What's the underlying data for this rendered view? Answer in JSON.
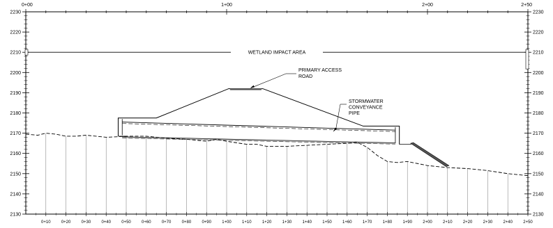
{
  "chart_data": {
    "type": "line",
    "xlim": [
      0,
      250
    ],
    "ylim": [
      2130,
      2230
    ],
    "y_ticks": [
      2130,
      2140,
      2150,
      2160,
      2170,
      2180,
      2190,
      2200,
      2210,
      2220,
      2230
    ],
    "y_tick_labels": [
      "2130",
      "2140",
      "2150",
      "2160",
      "2170",
      "2180",
      "2190",
      "2200",
      "2210",
      "2220",
      "2230"
    ],
    "top_stations": [
      0,
      100,
      200,
      250
    ],
    "top_station_labels": [
      "0+00",
      "1+00",
      "2+00",
      "2+50"
    ],
    "bottom_stations": [
      10,
      20,
      30,
      40,
      50,
      60,
      70,
      80,
      90,
      100,
      110,
      120,
      130,
      140,
      150,
      160,
      170,
      180,
      190,
      200,
      210,
      220,
      230,
      240,
      250
    ],
    "bottom_station_labels": [
      "0+10",
      "0+20",
      "0+30",
      "0+40",
      "0+50",
      "0+60",
      "0+70",
      "0+80",
      "0+90",
      "1+00",
      "1+10",
      "1+20",
      "1+30",
      "1+40",
      "1+50",
      "1+60",
      "1+70",
      "1+80",
      "1+90",
      "2+00",
      "2+10",
      "2+20",
      "2+30",
      "2+40",
      "2+50"
    ],
    "grid": "vertical lines at every station",
    "wetland_line": {
      "elevation": 2210,
      "label": "WETLAND IMPACT AREA"
    },
    "series": [
      {
        "style": "dashed",
        "x": [
          0,
          6,
          10,
          15,
          20,
          25,
          30,
          35,
          40,
          45,
          50,
          60,
          70,
          80,
          90,
          95,
          100,
          110,
          115,
          120,
          130,
          140,
          150,
          160,
          165,
          170,
          175,
          180,
          185,
          190,
          195,
          200,
          210,
          220,
          230,
          240,
          250
        ],
        "y": [
          2169.5,
          2169.0,
          2170.0,
          2169.5,
          2168.5,
          2168.5,
          2169.0,
          2168.5,
          2168.0,
          2168.2,
          2168.5,
          2168.5,
          2167.5,
          2167.0,
          2166.0,
          2167.0,
          2166.0,
          2164.5,
          2164.5,
          2163.5,
          2163.5,
          2164.0,
          2164.5,
          2165.0,
          2165.5,
          2163.0,
          2159.0,
          2156.0,
          2155.5,
          2156.0,
          2155.0,
          2154.0,
          2153.0,
          2152.5,
          2151.5,
          2150.0,
          2149.0
        ]
      }
    ],
    "road_profile": {
      "top_centerline": {
        "x": [
          101,
          118
        ],
        "elevation": 2192
      },
      "left_pad": {
        "x": [
          48,
          65
        ],
        "elevation": 2177.5
      },
      "right_pad": {
        "x": [
          168,
          184
        ],
        "elevation": 2173.5
      },
      "left_wall": {
        "x": [
          46,
          48
        ],
        "top": 2177.5,
        "bottom": 2168.5
      },
      "right_wall": {
        "x": [
          184,
          186
        ],
        "top": 2173.5,
        "bottom": 2164.5
      }
    },
    "pipe": {
      "x": [
        48,
        184
      ],
      "top": [
        2175.5,
        2171.5
      ],
      "bottom": [
        2168.2,
        2165.2
      ]
    },
    "riprap": {
      "x": [
        193,
        210
      ],
      "y": [
        2165,
        2154
      ]
    },
    "annotations": [
      {
        "text": [
          "PRIMARY ACCESS",
          "ROAD"
        ],
        "pointer_to": [
          110,
          2192
        ]
      },
      {
        "text": [
          "STORMWATER",
          "CONVEYANCE",
          "PIPE"
        ],
        "pointer_to": [
          153,
          2171
        ]
      }
    ]
  }
}
